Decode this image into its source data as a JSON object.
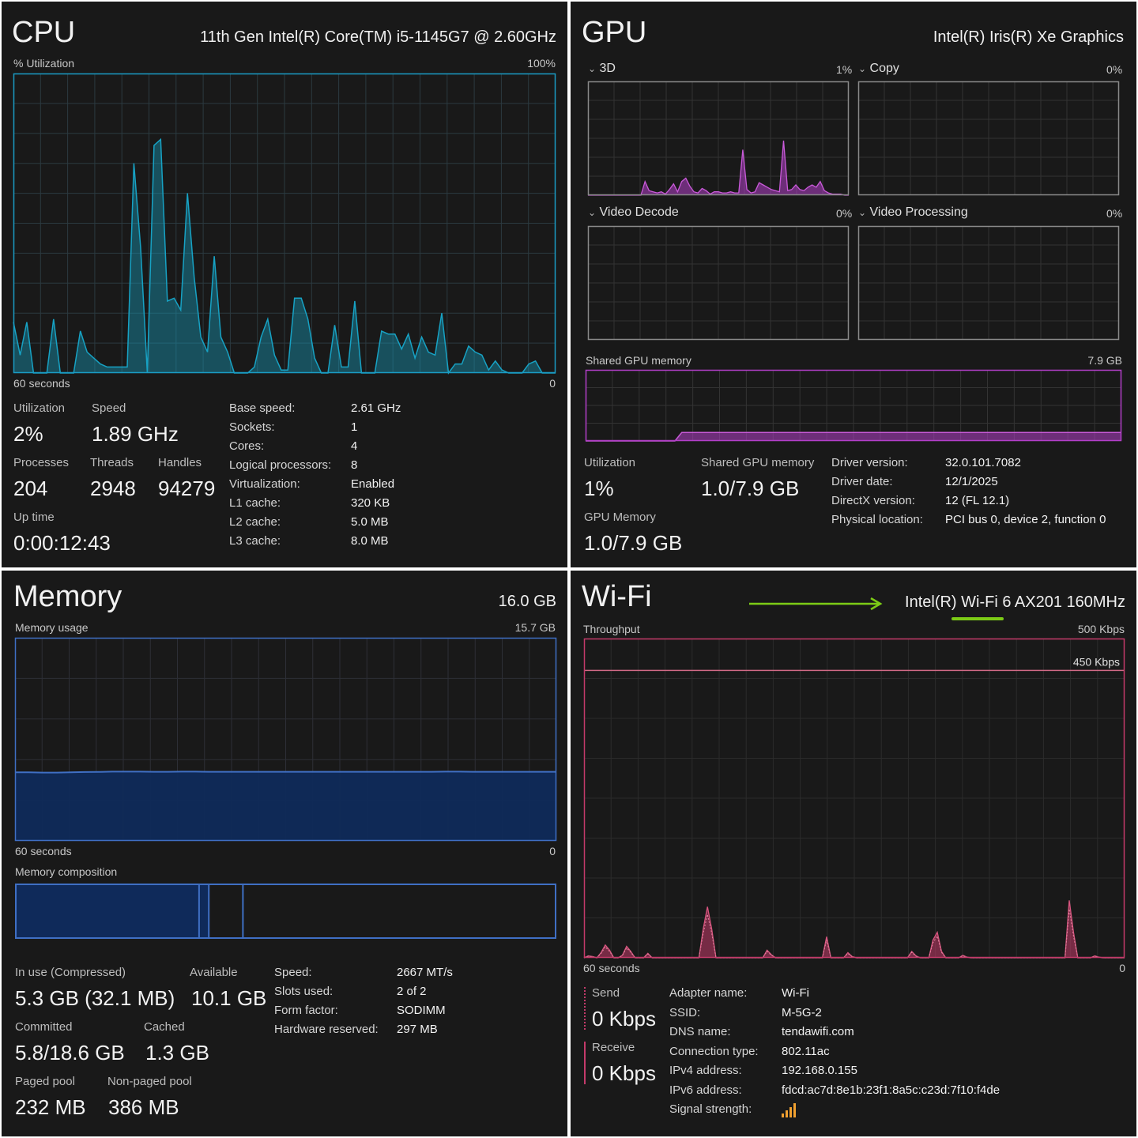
{
  "cpu": {
    "title": "CPU",
    "model": "11th Gen Intel(R) Core(TM) i5-1145G7 @ 2.60GHz",
    "graph_label": "% Utilization",
    "graph_max": "100%",
    "time_label": "60 seconds",
    "graph_min": "0",
    "color": "#17a2c4",
    "utilization_label": "Utilization",
    "utilization": "2%",
    "speed_label": "Speed",
    "speed": "1.89 GHz",
    "processes_label": "Processes",
    "processes": "204",
    "threads_label": "Threads",
    "threads": "2948",
    "handles_label": "Handles",
    "handles": "94279",
    "uptime_label": "Up time",
    "uptime": "0:00:12:43",
    "details": [
      {
        "label": "Base speed:",
        "value": "2.61 GHz"
      },
      {
        "label": "Sockets:",
        "value": "1"
      },
      {
        "label": "Cores:",
        "value": "4"
      },
      {
        "label": "Logical processors:",
        "value": "8"
      },
      {
        "label": "Virtualization:",
        "value": "Enabled"
      },
      {
        "label": "L1 cache:",
        "value": "320 KB"
      },
      {
        "label": "L2 cache:",
        "value": "5.0 MB"
      },
      {
        "label": "L3 cache:",
        "value": "8.0 MB"
      }
    ],
    "history": [
      17,
      6,
      17,
      0,
      0,
      0,
      18,
      0,
      0,
      0,
      14,
      7,
      5,
      3,
      2,
      2,
      2,
      2,
      70,
      42,
      0,
      76,
      78,
      24,
      25,
      21,
      60,
      32,
      12,
      7,
      39,
      12,
      7,
      0,
      0,
      0,
      2,
      12,
      18,
      6,
      1,
      1,
      25,
      25,
      18,
      5,
      0,
      0,
      16,
      2,
      2,
      24,
      0,
      0,
      0,
      14,
      13,
      13,
      8,
      13,
      5,
      12,
      7,
      6,
      20,
      0,
      3,
      3,
      9,
      7,
      6,
      1,
      4,
      1,
      0,
      0,
      0,
      3,
      4,
      0,
      0,
      0
    ]
  },
  "gpu": {
    "title": "GPU",
    "model": "Intel(R) Iris(R) Xe Graphics",
    "color": "#b33fc9",
    "engines": [
      {
        "name": "3D",
        "value": "1%"
      },
      {
        "name": "Copy",
        "value": "0%"
      },
      {
        "name": "Video Decode",
        "value": "0%"
      },
      {
        "name": "Video Processing",
        "value": "0%"
      }
    ],
    "shared_label": "Shared GPU memory",
    "shared_max": "7.9 GB",
    "utilization_label": "Utilization",
    "utilization": "1%",
    "shared_mem_label": "Shared GPU memory",
    "shared_mem": "1.0/7.9 GB",
    "gpu_mem_label": "GPU Memory",
    "gpu_mem": "1.0/7.9 GB",
    "details": [
      {
        "label": "Driver version:",
        "value": "32.0.101.7082"
      },
      {
        "label": "Driver date:",
        "value": "12/1/2025"
      },
      {
        "label": "DirectX version:",
        "value": "12 (FL 12.1)"
      },
      {
        "label": "Physical location:",
        "value": "PCI bus 0, device 2, function 0"
      }
    ],
    "history_3d": [
      0,
      0,
      0,
      0,
      0,
      0,
      0,
      0,
      0,
      0,
      0,
      0,
      0,
      0,
      12,
      4,
      3,
      2,
      3,
      1,
      5,
      10,
      3,
      12,
      15,
      8,
      3,
      2,
      6,
      4,
      1,
      3,
      3,
      2,
      2,
      3,
      2,
      2,
      40,
      5,
      2,
      3,
      11,
      9,
      7,
      5,
      4,
      3,
      48,
      4,
      5,
      9,
      5,
      4,
      7,
      9,
      7,
      12,
      4,
      2,
      1,
      1,
      1,
      0,
      0
    ],
    "shared_history": [
      0,
      0,
      0,
      0,
      0,
      0,
      0,
      0,
      0,
      0,
      0,
      0,
      0,
      0,
      12,
      12,
      12,
      12,
      12,
      12,
      12,
      12,
      12,
      12,
      12,
      12,
      12,
      12,
      12,
      12,
      12,
      12,
      12,
      12,
      12,
      12,
      12,
      12,
      12,
      12,
      12,
      12,
      12,
      12,
      12,
      12,
      12,
      12,
      12,
      12,
      12,
      12,
      12,
      12,
      12,
      12,
      12,
      12,
      12,
      12,
      12,
      12,
      12,
      12,
      12,
      12,
      12,
      12,
      12,
      12,
      12,
      12,
      12,
      12,
      12,
      12,
      12,
      12,
      12
    ]
  },
  "memory": {
    "title": "Memory",
    "total": "16.0 GB",
    "usage_label": "Memory usage",
    "usage_max": "15.7 GB",
    "time_label": "60 seconds",
    "graph_min": "0",
    "composition_label": "Memory composition",
    "color": "#3f6fc4",
    "composition": {
      "in_use": 0.34,
      "modified": 0.018,
      "standby": 0.063
    },
    "in_use_label": "In use (Compressed)",
    "in_use": "5.3 GB (32.1 MB)",
    "available_label": "Available",
    "available": "10.1 GB",
    "committed_label": "Committed",
    "committed": "5.8/18.6 GB",
    "cached_label": "Cached",
    "cached": "1.3 GB",
    "paged_label": "Paged pool",
    "paged": "232 MB",
    "nonpaged_label": "Non-paged pool",
    "nonpaged": "386 MB",
    "details": [
      {
        "label": "Speed:",
        "value": "2667 MT/s"
      },
      {
        "label": "Slots used:",
        "value": "2 of 2"
      },
      {
        "label": "Form factor:",
        "value": "SODIMM"
      },
      {
        "label": "Hardware reserved:",
        "value": "297 MB"
      }
    ],
    "history": [
      5.3,
      5.3,
      5.28,
      5.28,
      5.3,
      5.32,
      5.33,
      5.35,
      5.35,
      5.35,
      5.34,
      5.34,
      5.35,
      5.35,
      5.34,
      5.34,
      5.34,
      5.34,
      5.34,
      5.34,
      5.34,
      5.34,
      5.34,
      5.34,
      5.34,
      5.34,
      5.34,
      5.34,
      5.34,
      5.34,
      5.34,
      5.35,
      5.35,
      5.34,
      5.34,
      5.34,
      5.34,
      5.34,
      5.34,
      5.34
    ]
  },
  "wifi": {
    "title": "Wi-Fi",
    "adapter_model": "Intel(R) Wi-Fi 6 AX201 160MHz",
    "throughput_label": "Throughput",
    "throughput_max": "500 Kbps",
    "line_label": "450 Kbps",
    "line_value": 450,
    "time_label": "60 seconds",
    "graph_min": "0",
    "color": "#c43a6a",
    "send_label": "Send",
    "send": "0 Kbps",
    "receive_label": "Receive",
    "receive": "0 Kbps",
    "details": [
      {
        "label": "Adapter name:",
        "value": "Wi-Fi"
      },
      {
        "label": "SSID:",
        "value": "M-5G-2"
      },
      {
        "label": "DNS name:",
        "value": "tendawifi.com"
      },
      {
        "label": "Connection type:",
        "value": "802.11ac"
      },
      {
        "label": "IPv4 address:",
        "value": "192.168.0.155"
      },
      {
        "label": "IPv6 address:",
        "value": "fdcd:ac7d:8e1b:23f1:8a5c:c23d:7f10:f4de"
      },
      {
        "label": "Signal strength:",
        "value": ""
      }
    ],
    "signal_icon": "signal-bars-icon",
    "annotation_color": "#7ccb16",
    "history": [
      0,
      3,
      2,
      0,
      8,
      20,
      12,
      0,
      0,
      4,
      18,
      10,
      0,
      0,
      0,
      7,
      0,
      0,
      0,
      0,
      0,
      0,
      0,
      0,
      0,
      0,
      0,
      0,
      45,
      80,
      45,
      0,
      0,
      0,
      0,
      0,
      0,
      0,
      0,
      0,
      0,
      0,
      0,
      12,
      5,
      0,
      0,
      0,
      0,
      0,
      0,
      0,
      0,
      0,
      0,
      0,
      0,
      33,
      0,
      0,
      0,
      0,
      8,
      2,
      0,
      0,
      0,
      0,
      0,
      0,
      0,
      0,
      0,
      0,
      0,
      0,
      0,
      10,
      3,
      0,
      0,
      0,
      28,
      40,
      10,
      0,
      0,
      0,
      0,
      4,
      1,
      0,
      0,
      0,
      0,
      0,
      0,
      0,
      0,
      0,
      0,
      0,
      0,
      0,
      0,
      0,
      0,
      0,
      0,
      0,
      0,
      0,
      0,
      0,
      90,
      40,
      0,
      0,
      0,
      0,
      3,
      1,
      0,
      0,
      0,
      0,
      0,
      0
    ]
  }
}
